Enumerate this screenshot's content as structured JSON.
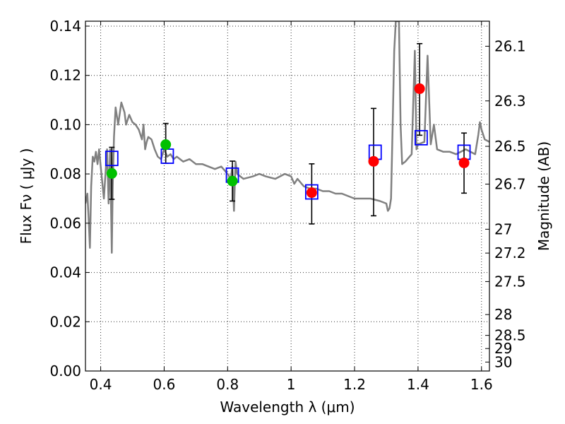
{
  "chart_data": {
    "type": "scatter",
    "xlabel": "Wavelength  λ (μm)",
    "ylabel": "Flux  Fν  ( μJy )",
    "ylabel_right": "Magnitude (AB)",
    "xlim": [
      0.352,
      1.625
    ],
    "ylim": [
      0.0,
      0.142
    ],
    "x_ticks": [
      0.4,
      0.6,
      0.8,
      1.0,
      1.2,
      1.4,
      1.6
    ],
    "x_tick_labels": [
      "0.4",
      "0.6",
      "0.8",
      "1",
      "1.2",
      "1.4",
      "1.6"
    ],
    "y_ticks": [
      0.0,
      0.02,
      0.04,
      0.06,
      0.08,
      0.1,
      0.12,
      0.14
    ],
    "y_tick_labels": [
      "0.00",
      "0.02",
      "0.04",
      "0.06",
      "0.08",
      "0.10",
      "0.12",
      "0.14"
    ],
    "mag_ticks": [
      26.1,
      26.3,
      26.5,
      26.7,
      27,
      27.2,
      27.5,
      28,
      28.5,
      29,
      30
    ],
    "mag_tick_labels": [
      "26.1",
      "26.3",
      "26.5",
      "26.7",
      "27",
      "27.2",
      "27.5",
      "28",
      "28.5",
      "29",
      "30"
    ],
    "grid": true,
    "colors": {
      "model": "#808080",
      "model_points": "#0000ff",
      "green_points": "#00c000",
      "red_points": "#ff0000",
      "errorbar": "#000000"
    },
    "model_spectrum": {
      "x": [
        0.352,
        0.358,
        0.362,
        0.366,
        0.37,
        0.375,
        0.38,
        0.385,
        0.39,
        0.395,
        0.4,
        0.41,
        0.42,
        0.425,
        0.43,
        0.435,
        0.438,
        0.442,
        0.447,
        0.455,
        0.465,
        0.475,
        0.48,
        0.49,
        0.5,
        0.51,
        0.52,
        0.53,
        0.535,
        0.54,
        0.545,
        0.55,
        0.56,
        0.57,
        0.58,
        0.59,
        0.6,
        0.61,
        0.62,
        0.63,
        0.64,
        0.66,
        0.68,
        0.7,
        0.72,
        0.74,
        0.76,
        0.78,
        0.8,
        0.81,
        0.815,
        0.82,
        0.825,
        0.83,
        0.85,
        0.88,
        0.9,
        0.92,
        0.95,
        0.98,
        1.0,
        1.01,
        1.02,
        1.04,
        1.06,
        1.08,
        1.1,
        1.12,
        1.14,
        1.16,
        1.18,
        1.2,
        1.22,
        1.25,
        1.28,
        1.3,
        1.305,
        1.31,
        1.315,
        1.32,
        1.325,
        1.33,
        1.335,
        1.34,
        1.345,
        1.35,
        1.36,
        1.38,
        1.39,
        1.395,
        1.4,
        1.42,
        1.43,
        1.44,
        1.45,
        1.46,
        1.48,
        1.5,
        1.52,
        1.55,
        1.58,
        1.59,
        1.595,
        1.6,
        1.61,
        1.625
      ],
      "y": [
        0.068,
        0.072,
        0.062,
        0.05,
        0.075,
        0.087,
        0.085,
        0.089,
        0.084,
        0.09,
        0.083,
        0.07,
        0.09,
        0.068,
        0.09,
        0.048,
        0.075,
        0.095,
        0.107,
        0.1,
        0.109,
        0.105,
        0.1,
        0.104,
        0.101,
        0.1,
        0.098,
        0.094,
        0.1,
        0.09,
        0.093,
        0.095,
        0.094,
        0.09,
        0.087,
        0.086,
        0.09,
        0.087,
        0.088,
        0.086,
        0.087,
        0.085,
        0.086,
        0.084,
        0.084,
        0.083,
        0.082,
        0.083,
        0.08,
        0.078,
        0.083,
        0.065,
        0.085,
        0.08,
        0.078,
        0.079,
        0.08,
        0.079,
        0.078,
        0.08,
        0.079,
        0.076,
        0.078,
        0.075,
        0.074,
        0.074,
        0.073,
        0.073,
        0.072,
        0.072,
        0.071,
        0.07,
        0.07,
        0.07,
        0.069,
        0.068,
        0.065,
        0.066,
        0.07,
        0.1,
        0.13,
        0.142,
        0.142,
        0.142,
        0.1,
        0.084,
        0.085,
        0.088,
        0.13,
        0.09,
        0.092,
        0.093,
        0.128,
        0.092,
        0.1,
        0.09,
        0.089,
        0.089,
        0.088,
        0.09,
        0.088,
        0.096,
        0.101,
        0.098,
        0.094,
        0.093
      ]
    },
    "series": [
      {
        "marker": "open-square",
        "x": [
          0.435,
          0.61,
          0.815,
          1.065,
          1.265,
          1.41,
          1.545
        ],
        "y": [
          0.0863,
          0.0872,
          0.0795,
          0.0727,
          0.0888,
          0.0947,
          0.0888
        ]
      },
      {
        "marker": "circle",
        "x": [
          0.435,
          0.605,
          0.815
        ],
        "y": [
          0.0802,
          0.0919,
          0.0771
        ]
      },
      {
        "marker": "circle",
        "x": [
          1.065,
          1.26,
          1.405,
          1.545
        ],
        "y": [
          0.0724,
          0.0851,
          0.1146,
          0.0845
        ]
      }
    ],
    "error_bars": [
      {
        "x": 0.435,
        "y": 0.0802,
        "low": 0.0697,
        "high": 0.0908
      },
      {
        "x": 0.605,
        "y": 0.0919,
        "low": 0.0843,
        "high": 0.1005
      },
      {
        "x": 0.815,
        "y": 0.0771,
        "low": 0.069,
        "high": 0.0852
      },
      {
        "x": 1.065,
        "y": 0.0724,
        "low": 0.0597,
        "high": 0.0841
      },
      {
        "x": 1.26,
        "y": 0.0851,
        "low": 0.063,
        "high": 0.1066
      },
      {
        "x": 1.405,
        "y": 0.1146,
        "low": 0.0957,
        "high": 0.1329
      },
      {
        "x": 1.545,
        "y": 0.0845,
        "low": 0.0722,
        "high": 0.0966
      }
    ]
  }
}
